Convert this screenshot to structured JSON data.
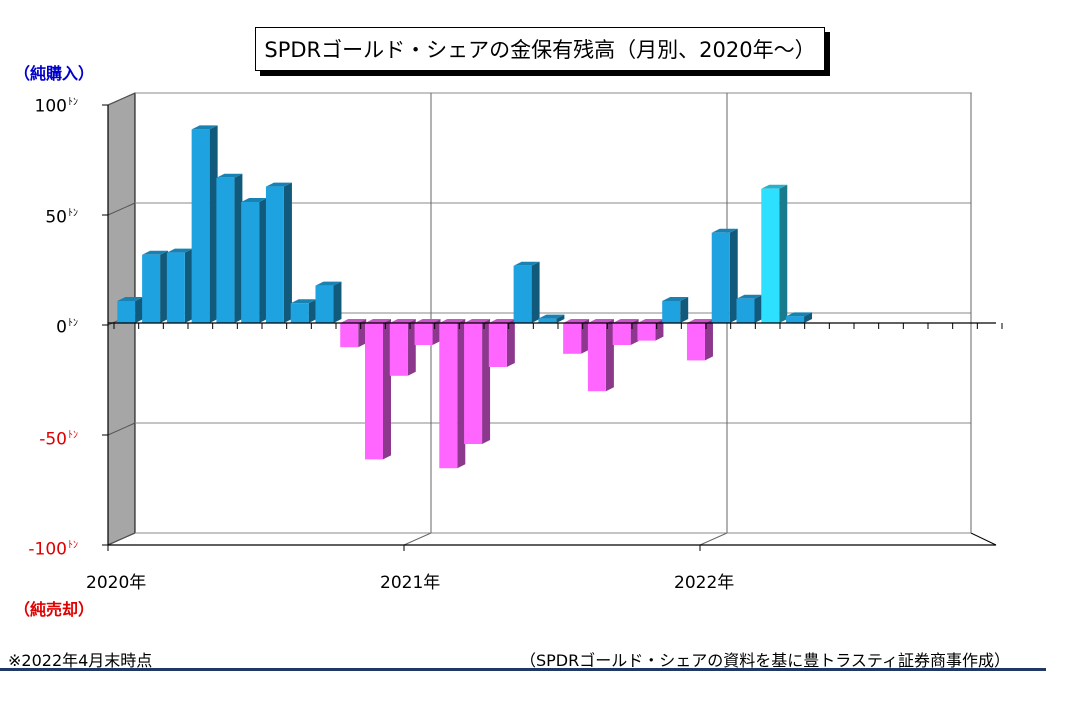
{
  "chart_data": {
    "type": "bar",
    "title": "SPDRゴールド・シェアの金保有残高（月別、2020年～）",
    "y_top_label": "（純購入）",
    "y_bottom_label": "（純売却）",
    "y_unit": "ﾄﾝ",
    "ylim": [
      -100,
      100
    ],
    "yticks": [
      "100",
      "50",
      "0",
      "-50",
      "-100"
    ],
    "ytick_values": [
      100,
      50,
      0,
      -50,
      -100
    ],
    "year_labels": [
      "2020年",
      "2021年",
      "2022年"
    ],
    "grid": true,
    "months": 36,
    "values": [
      10,
      31,
      32,
      88,
      66,
      55,
      62,
      9,
      17,
      -11,
      -62,
      -24,
      -10,
      -66,
      -55,
      -20,
      26,
      2,
      -14,
      -31,
      -10,
      -8,
      10,
      -17,
      41,
      11,
      61,
      3
    ],
    "colors": {
      "positive": "#1ea3e0",
      "positive_highlight": "#2ee0ff",
      "negative": "#ff66ff",
      "wall": "#a6a6a6",
      "up_label": "#0000cc",
      "down_label": "#e00000"
    }
  },
  "footer": {
    "note": "※2022年4月末時点",
    "source": "（SPDRゴールド・シェアの資料を基に豊トラスティ証券商事作成）"
  }
}
